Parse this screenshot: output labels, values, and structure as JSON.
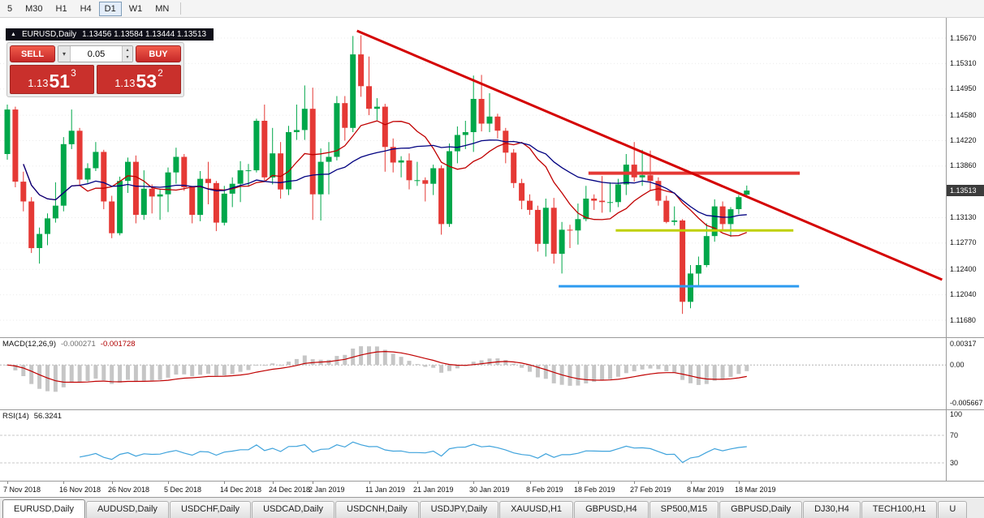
{
  "toolbar": {
    "periods": [
      "5",
      "M30",
      "H1",
      "H4",
      "D1",
      "W1",
      "MN"
    ],
    "active": "D1"
  },
  "chart_header": {
    "title": "EURUSD,Daily",
    "ohlc": "1.13456 1.13584 1.13444 1.13513"
  },
  "trade_panel": {
    "sell_label": "SELL",
    "buy_label": "BUY",
    "volume": "0.05",
    "sell_price": {
      "prefix": "1.13",
      "big": "51",
      "pip": "3"
    },
    "buy_price": {
      "prefix": "1.13",
      "big": "53",
      "pip": "2"
    }
  },
  "icons": {
    "chart_symbol": "▲",
    "volume_dropdown": "▾",
    "spin_up": "▴",
    "spin_down": "▾"
  },
  "tabs": {
    "active": "EURUSD,Daily",
    "items": [
      "EURUSD,Daily",
      "AUDUSD,Daily",
      "USDCHF,Daily",
      "USDCAD,Daily",
      "USDCNH,Daily",
      "USDJPY,Daily",
      "XAUUSD,H1",
      "GBPUSD,H4",
      "SP500,M15",
      "GBPUSD,Daily",
      "DJ30,H4",
      "TECH100,H1",
      "U"
    ]
  },
  "colors": {
    "candle_up": "#00A74A",
    "candle_down": "#E53935",
    "ma_fast": "#C00000",
    "ma_slow": "#000080",
    "macd_hist": "#C6C6C6",
    "macd_signal": "#C00000",
    "rsi_line": "#3FA3DC",
    "grid": "#EBEBEB",
    "badge_bg": "#3C3C3C"
  },
  "chart_data": {
    "type": "candlestick",
    "symbol": "EURUSD",
    "timeframe": "Daily",
    "ohlc_current": {
      "open": 1.13456,
      "high": 1.13584,
      "low": 1.13444,
      "close": 1.13513
    },
    "price_axis": {
      "labels": [
        "1.15670",
        "1.15310",
        "1.14950",
        "1.14580",
        "1.14220",
        "1.13860",
        "1.13130",
        "1.12770",
        "1.12400",
        "1.12040",
        "1.11680"
      ],
      "current": "1.13513"
    },
    "x_labels": [
      "7 Nov 2018",
      "16 Nov 2018",
      "26 Nov 2018",
      "5 Dec 2018",
      "14 Dec 2018",
      "24 Dec 2018",
      "2 Jan 2019",
      "11 Jan 2019",
      "21 Jan 2019",
      "30 Jan 2019",
      "8 Feb 2019",
      "18 Feb 2019",
      "27 Feb 2019",
      "8 Mar 2019",
      "18 Mar 2019"
    ],
    "x_label_indices": [
      0,
      7,
      13,
      20,
      27,
      33,
      38,
      45,
      51,
      58,
      65,
      71,
      78,
      85,
      91
    ],
    "candles": [
      [
        1.1403,
        1.1473,
        1.1395,
        1.1466
      ],
      [
        1.1466,
        1.147,
        1.1356,
        1.1364
      ],
      [
        1.1364,
        1.1378,
        1.1322,
        1.1336
      ],
      [
        1.1336,
        1.1342,
        1.1263,
        1.127
      ],
      [
        1.127,
        1.1299,
        1.1248,
        1.129
      ],
      [
        1.129,
        1.1319,
        1.1274,
        1.1312
      ],
      [
        1.1312,
        1.1363,
        1.1306,
        1.133
      ],
      [
        1.133,
        1.1427,
        1.1322,
        1.1417
      ],
      [
        1.1417,
        1.1466,
        1.141,
        1.1436
      ],
      [
        1.1436,
        1.144,
        1.1358,
        1.1367
      ],
      [
        1.1367,
        1.139,
        1.1362,
        1.1383
      ],
      [
        1.1383,
        1.142,
        1.1379,
        1.1406
      ],
      [
        1.1406,
        1.1409,
        1.1325,
        1.1336
      ],
      [
        1.1336,
        1.1344,
        1.1284,
        1.1291
      ],
      [
        1.1291,
        1.1371,
        1.1288,
        1.1365
      ],
      [
        1.1365,
        1.1398,
        1.1348,
        1.1392
      ],
      [
        1.1392,
        1.1401,
        1.1305,
        1.1317
      ],
      [
        1.1317,
        1.138,
        1.131,
        1.1354
      ],
      [
        1.1354,
        1.136,
        1.1319,
        1.1343
      ],
      [
        1.1343,
        1.1354,
        1.131,
        1.1346
      ],
      [
        1.1346,
        1.1384,
        1.1321,
        1.1377
      ],
      [
        1.1377,
        1.1412,
        1.1361,
        1.1399
      ],
      [
        1.1399,
        1.1403,
        1.1351,
        1.1356
      ],
      [
        1.1356,
        1.1358,
        1.1305,
        1.1317
      ],
      [
        1.1317,
        1.1379,
        1.1308,
        1.1368
      ],
      [
        1.1368,
        1.1392,
        1.1332,
        1.1362
      ],
      [
        1.1362,
        1.1365,
        1.1294,
        1.1306
      ],
      [
        1.1306,
        1.1358,
        1.1302,
        1.1347
      ],
      [
        1.1347,
        1.137,
        1.1328,
        1.1361
      ],
      [
        1.1361,
        1.1393,
        1.1335,
        1.138
      ],
      [
        1.138,
        1.1389,
        1.1357,
        1.138
      ],
      [
        1.138,
        1.1453,
        1.1377,
        1.145
      ],
      [
        1.145,
        1.1473,
        1.1364,
        1.137
      ],
      [
        1.137,
        1.144,
        1.136,
        1.1404
      ],
      [
        1.1404,
        1.142,
        1.134,
        1.1353
      ],
      [
        1.1353,
        1.1443,
        1.1345,
        1.1434
      ],
      [
        1.1434,
        1.1473,
        1.1423,
        1.1437
      ],
      [
        1.1437,
        1.15,
        1.1423,
        1.1467
      ],
      [
        1.1467,
        1.1497,
        1.131,
        1.1346
      ],
      [
        1.1346,
        1.1411,
        1.1309,
        1.1392
      ],
      [
        1.1392,
        1.142,
        1.1346,
        1.1399
      ],
      [
        1.1399,
        1.1485,
        1.1394,
        1.1475
      ],
      [
        1.1475,
        1.1485,
        1.1422,
        1.144
      ],
      [
        1.144,
        1.157,
        1.1434,
        1.1544
      ],
      [
        1.1544,
        1.1571,
        1.1484,
        1.1499
      ],
      [
        1.1499,
        1.1541,
        1.1458,
        1.1467
      ],
      [
        1.1467,
        1.1482,
        1.1451,
        1.147
      ],
      [
        1.147,
        1.1474,
        1.1378,
        1.1413
      ],
      [
        1.1413,
        1.1425,
        1.1377,
        1.1391
      ],
      [
        1.1391,
        1.14,
        1.137,
        1.1394
      ],
      [
        1.1394,
        1.1404,
        1.1353,
        1.1366
      ],
      [
        1.1366,
        1.1392,
        1.1358,
        1.1366
      ],
      [
        1.1366,
        1.137,
        1.1336,
        1.1361
      ],
      [
        1.1361,
        1.1388,
        1.1345,
        1.1383
      ],
      [
        1.1383,
        1.1387,
        1.1289,
        1.1304
      ],
      [
        1.1304,
        1.1418,
        1.13,
        1.1407
      ],
      [
        1.1407,
        1.1442,
        1.139,
        1.143
      ],
      [
        1.143,
        1.145,
        1.141,
        1.1434
      ],
      [
        1.1434,
        1.1514,
        1.1406,
        1.1481
      ],
      [
        1.1481,
        1.1515,
        1.1435,
        1.1446
      ],
      [
        1.1446,
        1.1489,
        1.1434,
        1.1456
      ],
      [
        1.1456,
        1.146,
        1.1425,
        1.1436
      ],
      [
        1.1436,
        1.144,
        1.139,
        1.1405
      ],
      [
        1.1405,
        1.141,
        1.1355,
        1.1362
      ],
      [
        1.1362,
        1.1368,
        1.1325,
        1.1337
      ],
      [
        1.1337,
        1.1346,
        1.1317,
        1.1324
      ],
      [
        1.1324,
        1.133,
        1.1265,
        1.1276
      ],
      [
        1.1276,
        1.134,
        1.1258,
        1.1327
      ],
      [
        1.1327,
        1.1341,
        1.1248,
        1.1262
      ],
      [
        1.1262,
        1.1307,
        1.1234,
        1.1296
      ],
      [
        1.1296,
        1.1303,
        1.127,
        1.1295
      ],
      [
        1.1295,
        1.1333,
        1.1275,
        1.1311
      ],
      [
        1.1311,
        1.1358,
        1.1308,
        1.134
      ],
      [
        1.134,
        1.1346,
        1.1324,
        1.1337
      ],
      [
        1.1337,
        1.1372,
        1.132,
        1.1335
      ],
      [
        1.1335,
        1.1363,
        1.1321,
        1.1335
      ],
      [
        1.1335,
        1.1368,
        1.1328,
        1.136
      ],
      [
        1.136,
        1.1403,
        1.1345,
        1.1388
      ],
      [
        1.1388,
        1.142,
        1.1364,
        1.137
      ],
      [
        1.137,
        1.1409,
        1.1358,
        1.1373
      ],
      [
        1.1373,
        1.1408,
        1.1352,
        1.1365
      ],
      [
        1.1365,
        1.137,
        1.133,
        1.1337
      ],
      [
        1.1337,
        1.1344,
        1.1305,
        1.1307
      ],
      [
        1.1307,
        1.1329,
        1.1302,
        1.1309
      ],
      [
        1.1309,
        1.1311,
        1.1177,
        1.1194
      ],
      [
        1.1194,
        1.1246,
        1.1185,
        1.1234
      ],
      [
        1.1234,
        1.1258,
        1.1216,
        1.1246
      ],
      [
        1.1246,
        1.1305,
        1.1243,
        1.1287
      ],
      [
        1.1287,
        1.1339,
        1.1279,
        1.1329
      ],
      [
        1.1329,
        1.1336,
        1.1295,
        1.1304
      ],
      [
        1.1304,
        1.1328,
        1.1286,
        1.1325
      ],
      [
        1.1325,
        1.1345,
        1.1318,
        1.1342
      ],
      [
        1.13456,
        1.13584,
        1.13444,
        1.13513
      ]
    ],
    "ma": {
      "fast": 10,
      "slow": 25
    },
    "trendline": {
      "from_index": 43.5,
      "from_price": 1.15773,
      "to_index": 116.3,
      "to_price": 1.12253,
      "color": "#D40000",
      "width": 3
    },
    "rays": [
      {
        "name": "resistance",
        "price": 1.1376,
        "from_index": 72.3,
        "to_index": 98.6,
        "color": "#E53935",
        "width": 4
      },
      {
        "name": "minor-support",
        "price": 1.1295,
        "from_index": 75.7,
        "to_index": 97.8,
        "color": "#BFD000",
        "width": 3
      },
      {
        "name": "support",
        "price": 1.1216,
        "from_index": 68.6,
        "to_index": 98.5,
        "color": "#2D9BF0",
        "width": 3
      }
    ],
    "indicators": {
      "macd": {
        "label": "MACD(12,26,9)",
        "value_main": "-0.000271",
        "value_signal": "-0.001728",
        "axis": [
          {
            "v": 0.00317,
            "t": "0.00317"
          },
          {
            "v": 0,
            "t": "0.00"
          },
          {
            "v": -0.005667,
            "t": "-0.005667"
          }
        ]
      },
      "rsi": {
        "label": "RSI(14)",
        "value": "56.3241",
        "levels": [
          {
            "v": 100,
            "t": "100"
          },
          {
            "v": 70,
            "t": "70"
          },
          {
            "v": 30,
            "t": "30"
          }
        ],
        "dashed": [
          70,
          30
        ]
      }
    }
  }
}
